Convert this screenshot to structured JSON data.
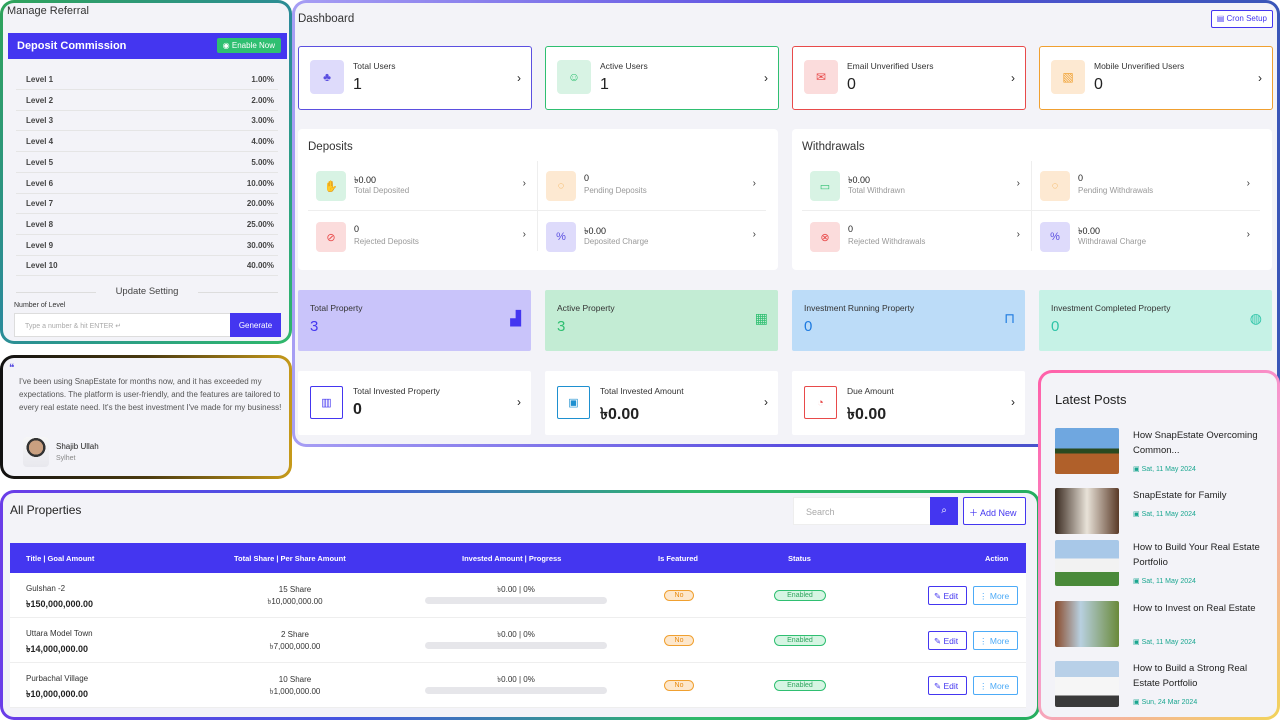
{
  "referral": {
    "title": "Manage Referral",
    "deposit_commission": "Deposit Commission",
    "enable_now": "Enable Now",
    "levels": [
      {
        "label": "Level 1",
        "value": "1.00%"
      },
      {
        "label": "Level 2",
        "value": "2.00%"
      },
      {
        "label": "Level 3",
        "value": "3.00%"
      },
      {
        "label": "Level 4",
        "value": "4.00%"
      },
      {
        "label": "Level 5",
        "value": "5.00%"
      },
      {
        "label": "Level 6",
        "value": "10.00%"
      },
      {
        "label": "Level 7",
        "value": "20.00%"
      },
      {
        "label": "Level 8",
        "value": "25.00%"
      },
      {
        "label": "Level 9",
        "value": "30.00%"
      },
      {
        "label": "Level 10",
        "value": "40.00%"
      }
    ],
    "update_setting": "Update Setting",
    "number_of_level": "Number of Level",
    "input_placeholder": "Type a number & hit ENTER ↵",
    "generate": "Generate"
  },
  "testimonial": {
    "text": "I've been using SnapEstate for months now, and it has exceeded my expectations. The platform is user-friendly, and the features are tailored to every real estate need. It's the best investment I've made for my business!",
    "name": "Shajib Ullah",
    "location": "Sylhet"
  },
  "dashboard": {
    "title": "Dashboard",
    "cron_setup": "Cron Setup",
    "stats": [
      {
        "label": "Total Users",
        "value": "1",
        "color": "#5b4fe0"
      },
      {
        "label": "Active Users",
        "value": "1",
        "color": "#2fbf71"
      },
      {
        "label": "Email Unverified Users",
        "value": "0",
        "color": "#e84a4a"
      },
      {
        "label": "Mobile Unverified Users",
        "value": "0",
        "color": "#f0a030"
      }
    ],
    "deposits": {
      "title": "Deposits",
      "items": [
        {
          "value": "৳0.00",
          "label": "Total Deposited"
        },
        {
          "value": "0",
          "label": "Pending Deposits"
        },
        {
          "value": "0",
          "label": "Rejected Deposits"
        },
        {
          "value": "৳0.00",
          "label": "Deposited Charge"
        }
      ]
    },
    "withdrawals": {
      "title": "Withdrawals",
      "items": [
        {
          "value": "৳0.00",
          "label": "Total Withdrawn"
        },
        {
          "value": "0",
          "label": "Pending Withdrawals"
        },
        {
          "value": "0",
          "label": "Rejected Withdrawals"
        },
        {
          "value": "৳0.00",
          "label": "Withdrawal Charge"
        }
      ]
    },
    "property_cards": [
      {
        "label": "Total Property",
        "value": "3"
      },
      {
        "label": "Active Property",
        "value": "3"
      },
      {
        "label": "Investment Running Property",
        "value": "0"
      },
      {
        "label": "Investment Completed Property",
        "value": "0"
      }
    ],
    "invest_cards": [
      {
        "label": "Total Invested Property",
        "value": "0"
      },
      {
        "label": "Total Invested Amount",
        "value": "৳0.00"
      },
      {
        "label": "Due Amount",
        "value": "৳0.00"
      }
    ]
  },
  "properties": {
    "title": "All Properties",
    "search_placeholder": "Search",
    "add_new": "Add New",
    "headers": [
      "Title | Goal Amount",
      "Total Share | Per Share Amount",
      "Invested Amount | Progress",
      "Is Featured",
      "Status",
      "Action"
    ],
    "rows": [
      {
        "title": "Gulshan -2",
        "goal": "৳150,000,000.00",
        "shares": "15 Share",
        "per_share": "৳10,000,000.00",
        "invested": "৳0.00 | 0%",
        "progress": 0,
        "featured": "No",
        "status": "Enabled"
      },
      {
        "title": "Uttara Model Town",
        "goal": "৳14,000,000.00",
        "shares": "2 Share",
        "per_share": "৳7,000,000.00",
        "invested": "৳0.00 | 0%",
        "progress": 0,
        "featured": "No",
        "status": "Enabled"
      },
      {
        "title": "Purbachal Village",
        "goal": "৳10,000,000.00",
        "shares": "10 Share",
        "per_share": "৳1,000,000.00",
        "invested": "৳0.00 | 0%",
        "progress": 0,
        "featured": "No",
        "status": "Enabled"
      }
    ],
    "edit": "Edit",
    "more": "More"
  },
  "posts": {
    "title": "Latest Posts",
    "items": [
      {
        "title": "How SnapEstate Overcoming Common...",
        "date": "Sat, 11 May 2024"
      },
      {
        "title": "SnapEstate for Family",
        "date": "Sat, 11 May 2024"
      },
      {
        "title": "How to Build Your Real Estate Portfolio",
        "date": "Sat, 11 May 2024"
      },
      {
        "title": "How to Invest on Real Estate",
        "date": "Sat, 11 May 2024"
      },
      {
        "title": "How to Build a Strong Real Estate Portfolio",
        "date": "Sun, 24 Mar 2024"
      }
    ]
  }
}
